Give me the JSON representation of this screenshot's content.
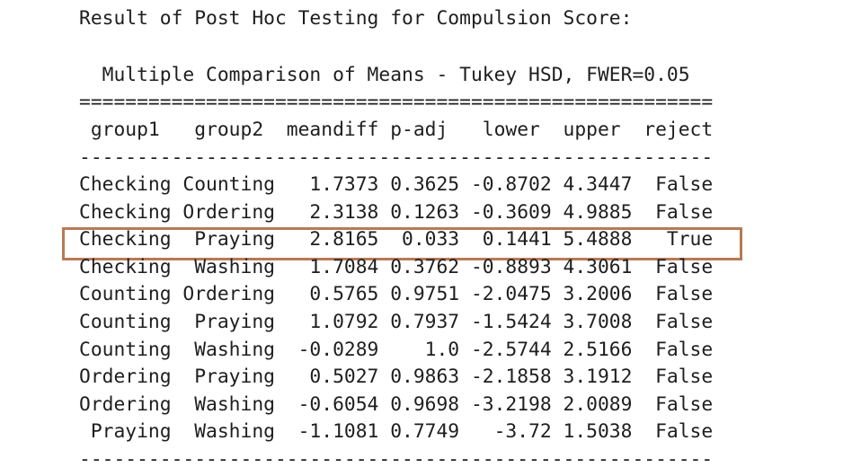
{
  "title": "Result of Post Hoc Testing for Compulsion Score:",
  "caption": "  Multiple Comparison of Means - Tukey HSD, FWER=0.05",
  "rule_top": "=======================================================",
  "header": " group1   group2  meandiff p-adj   lower  upper  reject",
  "rule": "-------------------------------------------------------",
  "rows": [
    "Checking Counting   1.7373 0.3625 -0.8702 4.3447  False",
    "Checking Ordering   2.3138 0.1263 -0.3609 4.9885  False",
    "Checking  Praying   2.8165  0.033  0.1441 5.4888   True",
    "Checking  Washing   1.7084 0.3762 -0.8893 4.3061  False",
    "Counting Ordering   0.5765 0.9751 -2.0475 3.2006  False",
    "Counting  Praying   1.0792 0.7937 -1.5424 3.7008  False",
    "Counting  Washing  -0.0289    1.0 -2.5744 2.5166  False",
    "Ordering  Praying   0.5027 0.9863 -2.1858 3.1912  False",
    "Ordering  Washing  -0.6054 0.9698 -3.2198 2.0089  False",
    " Praying  Washing  -1.1081 0.7749   -3.72 1.5038  False"
  ],
  "rule_bottom": "-------------------------------------------------------"
}
